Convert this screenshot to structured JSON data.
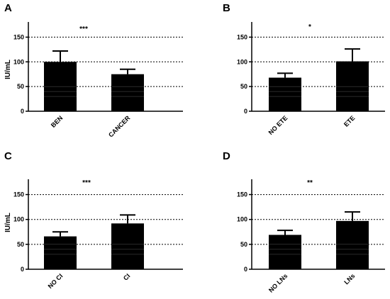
{
  "chart_data": [
    {
      "panel": "A",
      "type": "bar",
      "ylabel": "IU/mL",
      "ylim": [
        0,
        175
      ],
      "yticks": [
        0,
        50,
        100,
        150
      ],
      "dashed_reference_lines": [
        50,
        100,
        150
      ],
      "categories": [
        "BEN",
        "CANCER"
      ],
      "values": [
        100,
        75
      ],
      "error": [
        22,
        10
      ],
      "significance": "***",
      "bar_color": "#000000"
    },
    {
      "panel": "B",
      "type": "bar",
      "ylabel": "",
      "ylim": [
        0,
        175
      ],
      "yticks": [
        0,
        50,
        100,
        150
      ],
      "dashed_reference_lines": [
        50,
        100,
        150
      ],
      "categories": [
        "NO ETE",
        "ETE"
      ],
      "values": [
        68,
        101
      ],
      "error": [
        9,
        25
      ],
      "significance": "*",
      "bar_color": "#000000"
    },
    {
      "panel": "C",
      "type": "bar",
      "ylabel": "IU/mL",
      "ylim": [
        0,
        175
      ],
      "yticks": [
        0,
        50,
        100,
        150
      ],
      "dashed_reference_lines": [
        50,
        100,
        150
      ],
      "categories": [
        "NO CI",
        "CI"
      ],
      "values": [
        66,
        92
      ],
      "error": [
        9,
        17
      ],
      "significance": "***",
      "bar_color": "#000000"
    },
    {
      "panel": "D",
      "type": "bar",
      "ylabel": "",
      "ylim": [
        0,
        175
      ],
      "yticks": [
        0,
        50,
        100,
        150
      ],
      "dashed_reference_lines": [
        50,
        100,
        150
      ],
      "categories": [
        "NO LNs",
        "LNs"
      ],
      "values": [
        69,
        97
      ],
      "error": [
        9,
        18
      ],
      "significance": "**",
      "bar_color": "#000000"
    }
  ]
}
